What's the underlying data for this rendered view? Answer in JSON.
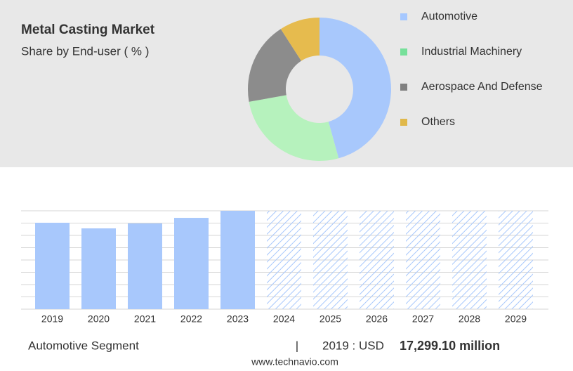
{
  "chart_data": [
    {
      "type": "pie",
      "title": "Metal Casting Market",
      "subtitle": "Share by End-user ( % )",
      "categories": [
        "Automotive",
        "Industrial Machinery",
        "Aerospace And Defense",
        "Others"
      ],
      "values": [
        45.7,
        26.5,
        18.7,
        9.1
      ],
      "colors": [
        "#a8c8fc",
        "#b6f2bd",
        "#8c8c8c",
        "#e6bb4e"
      ],
      "legend_colors": [
        "#a6c8ff",
        "#76e09a",
        "#808080",
        "#e0b84a"
      ],
      "hole": true
    },
    {
      "type": "bar",
      "categories": [
        "2019",
        "2020",
        "2021",
        "2022",
        "2023",
        "2024",
        "2025",
        "2026",
        "2027",
        "2028",
        "2029"
      ],
      "values": [
        17299.1,
        16170,
        17160,
        18280,
        19690,
        null,
        null,
        null,
        null,
        null,
        null
      ],
      "color": "#a8c8fc",
      "ylim": [
        0,
        19690
      ],
      "grid": true
    }
  ],
  "footer": {
    "segment": "Automotive Segment",
    "separator": "|",
    "period": "2019 : USD",
    "value": "17,299.10 million",
    "source": "www.technavio.com"
  }
}
